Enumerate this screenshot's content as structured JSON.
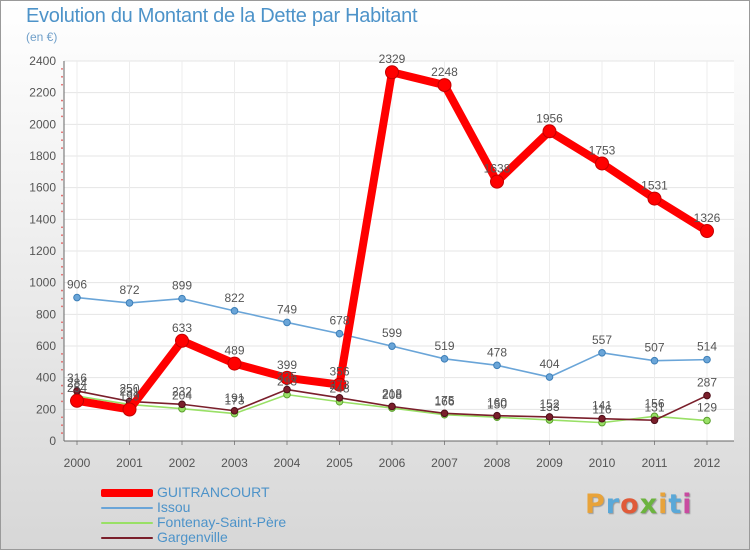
{
  "title": "Evolution du Montant de la Dette par Habitant",
  "subtitle": "(en €)",
  "brand": {
    "text": "Proxiti",
    "letter_colors": [
      "#e8a33a",
      "#5aa8d8",
      "#e05a39",
      "#6cb33f",
      "#e8a33a",
      "#5aa8d8",
      "#c84ba0"
    ]
  },
  "chart_data": {
    "type": "line",
    "title": "Evolution du Montant de la Dette par Habitant",
    "subtitle": "(en €)",
    "xlabel": "",
    "ylabel": "",
    "x": [
      "2000",
      "2001",
      "2002",
      "2003",
      "2004",
      "2005",
      "2006",
      "2007",
      "2008",
      "2009",
      "2010",
      "2011",
      "2012"
    ],
    "ylim": [
      0,
      2400
    ],
    "yticks": [
      0,
      200,
      400,
      600,
      800,
      1000,
      1200,
      1400,
      1600,
      1800,
      2000,
      2200,
      2400
    ],
    "grid": true,
    "legend_position": "bottom-left",
    "series": [
      {
        "name": "GUITRANCOURT",
        "color": "#ff0000",
        "values": [
          254,
          199,
          633,
          489,
          399,
          356,
          2329,
          2248,
          1638,
          1956,
          1753,
          1531,
          1326
        ],
        "labels": [
          "254",
          "199",
          "633",
          "489",
          "399",
          "356",
          "2329",
          "2248",
          "1638",
          "1956",
          "1753",
          "1531",
          "1326"
        ]
      },
      {
        "name": "Issou",
        "color": "#6aa5d8",
        "values": [
          906,
          872,
          899,
          822,
          749,
          678,
          599,
          519,
          478,
          404,
          557,
          507,
          514
        ],
        "labels": [
          "906",
          "872",
          "899",
          "822",
          "749",
          "678",
          "599",
          "519",
          "478",
          "404",
          "557",
          "507",
          "514"
        ]
      },
      {
        "name": "Fontenay-Saint-Père",
        "color": "#99e066",
        "values": [
          284,
          231,
          204,
          173,
          293,
          248,
          208,
          166,
          150,
          133,
          116,
          156,
          129
        ],
        "labels": [
          "284",
          "231",
          "204",
          "173",
          "293",
          "248",
          "208",
          "166",
          "150",
          "133",
          "116",
          "156",
          "129"
        ]
      },
      {
        "name": "Gargenville",
        "color": "#7a1f2b",
        "values": [
          316,
          250,
          232,
          191,
          325,
          273,
          218,
          175,
          160,
          152,
          141,
          131,
          287
        ],
        "labels": [
          "316",
          "250",
          "232",
          "191",
          "325",
          "273",
          "218",
          "175",
          "160",
          "152",
          "141",
          "131",
          "287"
        ]
      }
    ]
  }
}
